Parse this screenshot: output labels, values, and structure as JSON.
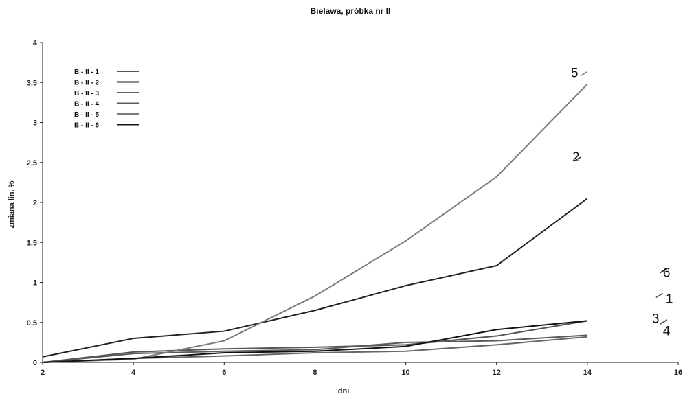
{
  "chart_data": {
    "type": "line",
    "title": "Bielawa, próbka nr II",
    "xlabel": "dni",
    "ylabel": "zmiana lin. %",
    "xlim": [
      2,
      16
    ],
    "ylim": [
      0,
      4
    ],
    "x_ticks": [
      "2",
      "4",
      "6",
      "8",
      "10",
      "12",
      "14",
      "16"
    ],
    "y_ticks": [
      "0",
      "0,5",
      "1",
      "1,5",
      "2",
      "2,5",
      "3",
      "3,5",
      "4"
    ],
    "x": [
      2,
      4,
      6,
      8,
      10,
      12,
      14
    ],
    "legend_position": "top-left",
    "grid": false,
    "series": [
      {
        "name": "B - II - 1",
        "end_label": "1",
        "color": "#555555",
        "values": [
          0.0,
          0.13,
          0.17,
          0.19,
          0.22,
          0.33,
          0.52
        ]
      },
      {
        "name": "B - II - 2",
        "end_label": "2",
        "color": "#222222",
        "values": [
          0.07,
          0.3,
          0.39,
          0.65,
          0.96,
          1.21,
          2.05
        ]
      },
      {
        "name": "B - II - 3",
        "end_label": "3",
        "color": "#666666",
        "values": [
          0.0,
          0.05,
          0.08,
          0.12,
          0.14,
          0.22,
          0.32
        ]
      },
      {
        "name": "B - II - 4",
        "end_label": "4",
        "color": "#5a5a5a",
        "values": [
          0.0,
          0.11,
          0.14,
          0.16,
          0.25,
          0.27,
          0.34
        ]
      },
      {
        "name": "B - II - 5",
        "end_label": "5",
        "color": "#7a7a7a",
        "values": [
          0.0,
          0.04,
          0.27,
          0.83,
          1.52,
          2.32,
          3.48
        ]
      },
      {
        "name": "B - II - 6",
        "end_label": "6",
        "color": "#111111",
        "values": [
          0.0,
          0.05,
          0.12,
          0.14,
          0.2,
          0.41,
          0.52
        ]
      }
    ]
  }
}
